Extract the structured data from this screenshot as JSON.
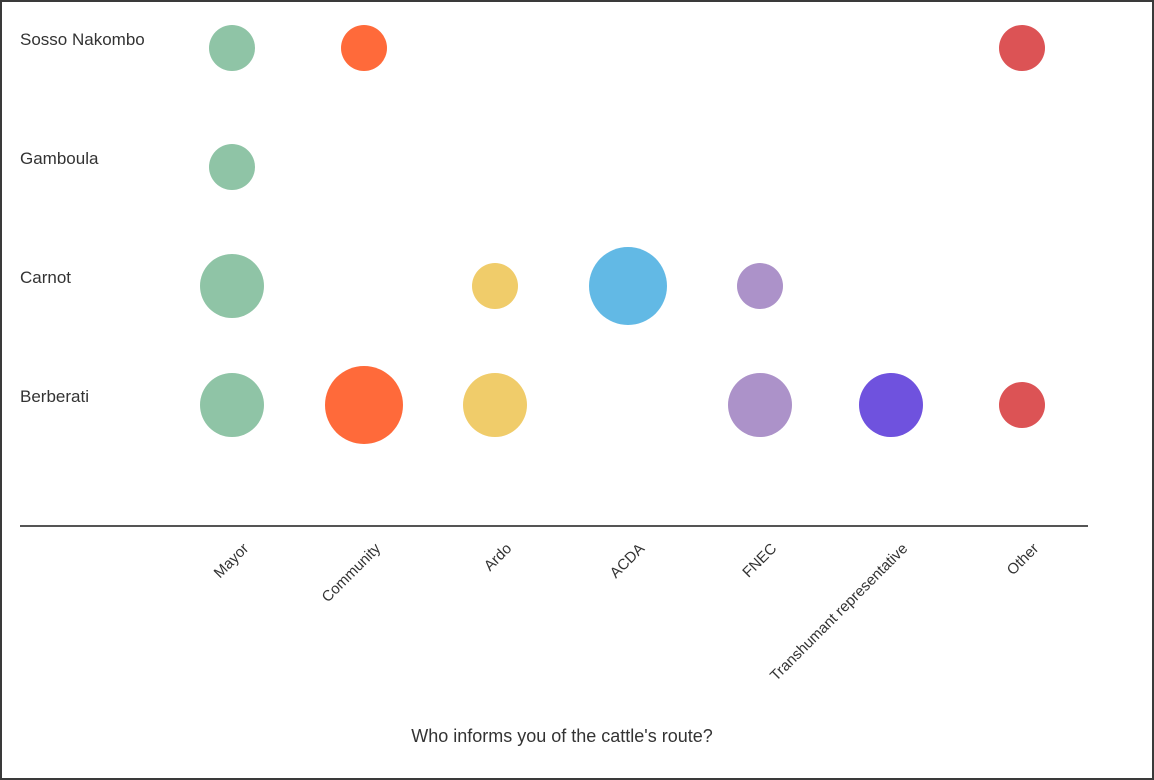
{
  "chart_data": {
    "type": "scatter",
    "subtype": "bubble",
    "title": "",
    "xlabel": "Who informs you of the cattle's route?",
    "ylabel": "",
    "categories": [
      "Mayor",
      "Community",
      "Ardo",
      "ACDA",
      "FNEC",
      "Transhumant representative",
      "Other"
    ],
    "rows": [
      "Sosso Nakombo",
      "Gamboula",
      "Carnot",
      "Berberati"
    ],
    "category_colors": [
      "#8fc4a6",
      "#ff6a3a",
      "#f0cc6a",
      "#62b9e5",
      "#ac92c9",
      "#6f52de",
      "#dc5355"
    ],
    "points": [
      {
        "row": "Sosso Nakombo",
        "category": "Mayor",
        "value": 1
      },
      {
        "row": "Sosso Nakombo",
        "category": "Community",
        "value": 1
      },
      {
        "row": "Sosso Nakombo",
        "category": "Other",
        "value": 1
      },
      {
        "row": "Gamboula",
        "category": "Mayor",
        "value": 1
      },
      {
        "row": "Carnot",
        "category": "Mayor",
        "value": 2
      },
      {
        "row": "Carnot",
        "category": "Ardo",
        "value": 1
      },
      {
        "row": "Carnot",
        "category": "ACDA",
        "value": 3
      },
      {
        "row": "Carnot",
        "category": "FNEC",
        "value": 1
      },
      {
        "row": "Berberati",
        "category": "Mayor",
        "value": 2
      },
      {
        "row": "Berberati",
        "category": "Community",
        "value": 3
      },
      {
        "row": "Berberati",
        "category": "Ardo",
        "value": 2
      },
      {
        "row": "Berberati",
        "category": "FNEC",
        "value": 2
      },
      {
        "row": "Berberati",
        "category": "Transhumant representative",
        "value": 2
      },
      {
        "row": "Berberati",
        "category": "Other",
        "value": 1
      }
    ],
    "grid": false,
    "legend": "none"
  }
}
